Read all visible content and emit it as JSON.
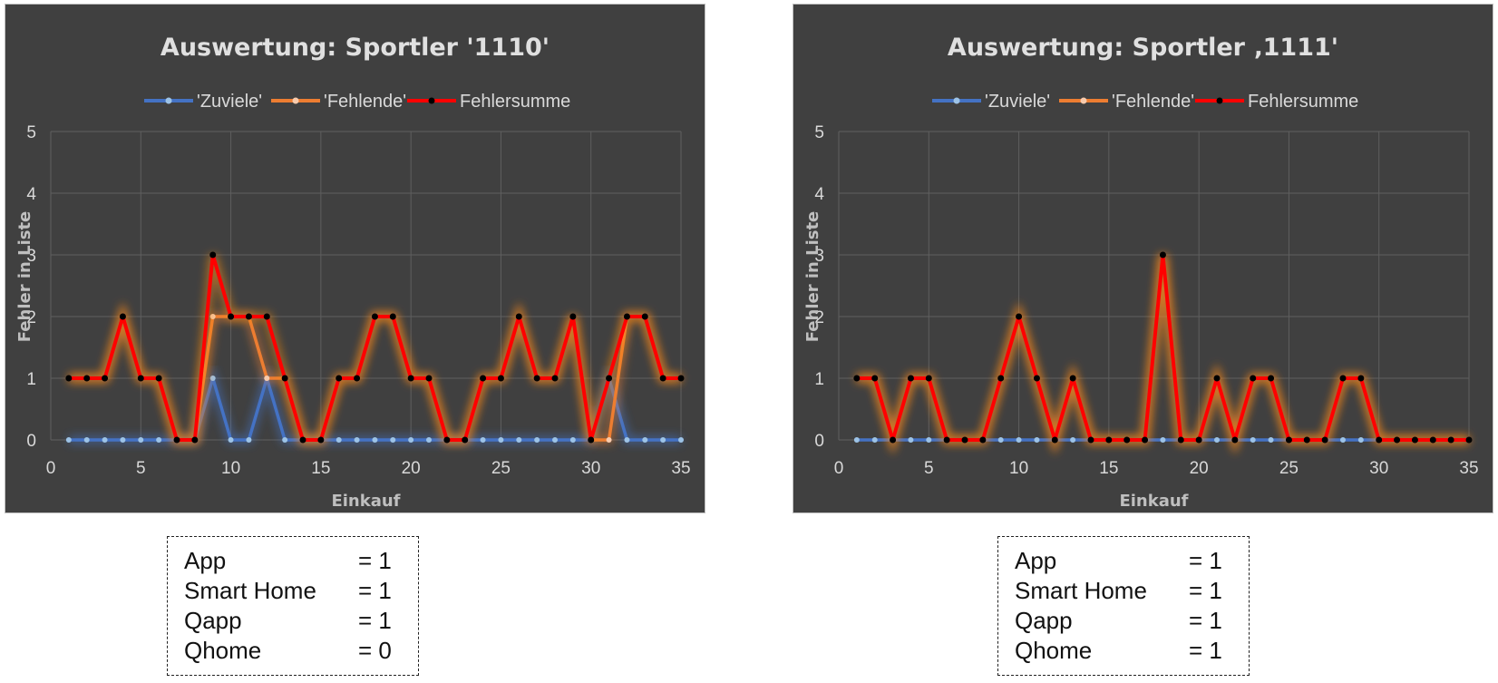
{
  "chart_data": [
    {
      "type": "line",
      "title": "Auswertung: Sportler '1110'",
      "xlabel": "Einkauf",
      "ylabel": "Fehler in Liste",
      "xlim": [
        0,
        35
      ],
      "ylim": [
        0,
        5
      ],
      "xticks": [
        0,
        5,
        10,
        15,
        20,
        25,
        30,
        35
      ],
      "yticks": [
        0,
        1,
        2,
        3,
        4,
        5
      ],
      "grid": true,
      "legend": "top",
      "x": [
        1,
        2,
        3,
        4,
        5,
        6,
        7,
        8,
        9,
        10,
        11,
        12,
        13,
        14,
        15,
        16,
        17,
        18,
        19,
        20,
        21,
        22,
        23,
        24,
        25,
        26,
        27,
        28,
        29,
        30,
        31,
        32,
        33,
        34,
        35
      ],
      "series": [
        {
          "name": "'Zuviele'",
          "color": "#4472c4",
          "marker": "#9dc3e6",
          "values": [
            0,
            0,
            0,
            0,
            0,
            0,
            0,
            0,
            1,
            0,
            0,
            1,
            0,
            0,
            0,
            0,
            0,
            0,
            0,
            0,
            0,
            0,
            0,
            0,
            0,
            0,
            0,
            0,
            0,
            0,
            1,
            0,
            0,
            0,
            0
          ]
        },
        {
          "name": "'Fehlende'",
          "color": "#ed7d31",
          "marker": "#f8cbad",
          "values": [
            1,
            1,
            1,
            2,
            1,
            1,
            0,
            0,
            2,
            2,
            2,
            1,
            1,
            0,
            0,
            1,
            1,
            2,
            2,
            1,
            1,
            0,
            0,
            1,
            1,
            2,
            1,
            1,
            2,
            0,
            0,
            2,
            2,
            1,
            1
          ]
        },
        {
          "name": "Fehlersumme",
          "color": "#ff0000",
          "marker": "#000000",
          "values": [
            1,
            1,
            1,
            2,
            1,
            1,
            0,
            0,
            3,
            2,
            2,
            2,
            1,
            0,
            0,
            1,
            1,
            2,
            2,
            1,
            1,
            0,
            0,
            1,
            1,
            2,
            1,
            1,
            2,
            0,
            1,
            2,
            2,
            1,
            1
          ]
        }
      ]
    },
    {
      "type": "line",
      "title": "Auswertung: Sportler ‚1111'",
      "xlabel": "Einkauf",
      "ylabel": "Fehler in Liste",
      "xlim": [
        0,
        35
      ],
      "ylim": [
        0,
        5
      ],
      "xticks": [
        0,
        5,
        10,
        15,
        20,
        25,
        30,
        35
      ],
      "yticks": [
        0,
        1,
        2,
        3,
        4,
        5
      ],
      "grid": true,
      "legend": "top",
      "x": [
        1,
        2,
        3,
        4,
        5,
        6,
        7,
        8,
        9,
        10,
        11,
        12,
        13,
        14,
        15,
        16,
        17,
        18,
        19,
        20,
        21,
        22,
        23,
        24,
        25,
        26,
        27,
        28,
        29,
        30,
        31,
        32,
        33,
        34,
        35
      ],
      "series": [
        {
          "name": "'Zuviele'",
          "color": "#4472c4",
          "marker": "#9dc3e6",
          "values": [
            0,
            0,
            0,
            0,
            0,
            0,
            0,
            0,
            0,
            0,
            0,
            0,
            0,
            0,
            0,
            0,
            0,
            0,
            0,
            0,
            0,
            0,
            0,
            0,
            0,
            0,
            0,
            0,
            0,
            0,
            0,
            0,
            0,
            0,
            0
          ]
        },
        {
          "name": "'Fehlende'",
          "color": "#ed7d31",
          "marker": "#f8cbad",
          "values": [
            1,
            1,
            0,
            1,
            1,
            0,
            0,
            0,
            1,
            2,
            1,
            0,
            1,
            0,
            0,
            0,
            0,
            3,
            0,
            0,
            1,
            0,
            1,
            1,
            0,
            0,
            0,
            1,
            1,
            0,
            0,
            0,
            0,
            0,
            0
          ]
        },
        {
          "name": "Fehlersumme",
          "color": "#ff0000",
          "marker": "#000000",
          "values": [
            1,
            1,
            0,
            1,
            1,
            0,
            0,
            0,
            1,
            2,
            1,
            0,
            1,
            0,
            0,
            0,
            0,
            3,
            0,
            0,
            1,
            0,
            1,
            1,
            0,
            0,
            0,
            1,
            1,
            0,
            0,
            0,
            0,
            0,
            0
          ]
        }
      ]
    }
  ],
  "info_boxes": [
    {
      "rows": [
        {
          "key": "App",
          "value": "= 1"
        },
        {
          "key": "Smart Home",
          "value": "= 1"
        },
        {
          "key": "Qapp",
          "value": "= 1"
        },
        {
          "key": "Qhome",
          "value": "= 0"
        }
      ]
    },
    {
      "rows": [
        {
          "key": "App",
          "value": "= 1"
        },
        {
          "key": "Smart Home",
          "value": "= 1"
        },
        {
          "key": "Qapp",
          "value": "= 1"
        },
        {
          "key": "Qhome",
          "value": "= 1"
        }
      ]
    }
  ]
}
